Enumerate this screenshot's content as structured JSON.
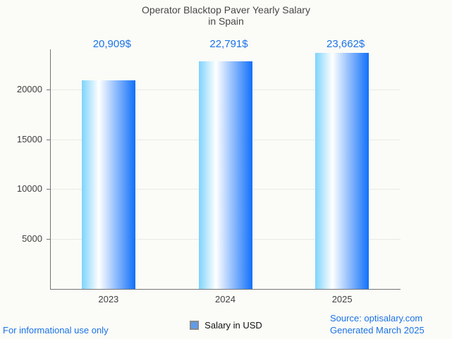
{
  "title": {
    "line1": "Operator Blacktop Paver Yearly Salary",
    "line2": "in Spain"
  },
  "chart_data": {
    "type": "bar",
    "title": "Operator Blacktop Paver Yearly Salary in Spain",
    "categories": [
      "2023",
      "2024",
      "2025"
    ],
    "values": [
      20909,
      22791,
      23662
    ],
    "value_labels": [
      "20,909$",
      "22,791$",
      "23,662$"
    ],
    "xlabel": "",
    "ylabel": "",
    "ylim": [
      0,
      24000
    ],
    "yticks": [
      5000,
      10000,
      15000,
      20000
    ],
    "ytick_labels": [
      "5000",
      "10000",
      "15000",
      "20000"
    ],
    "grid": true,
    "legend_position": "bottom",
    "legend_entries": [
      "Salary in USD"
    ]
  },
  "legend": {
    "label": "Salary in USD"
  },
  "footer": {
    "disclaimer": "For informational use only",
    "source": "Source: optisalary.com",
    "generated": "Generated March 2025"
  },
  "colors": {
    "background": "#fbfbf7",
    "title_text": "#474747",
    "accent_blue": "#1a73e8",
    "axis_line": "#757575",
    "gridline": "#e9e9e9",
    "legend_swatch": "#5f9ce8",
    "bar_gradient_left": "#7ed3fc",
    "bar_gradient_mid": "#ffffff",
    "bar_gradient_right": "#1170f9"
  }
}
